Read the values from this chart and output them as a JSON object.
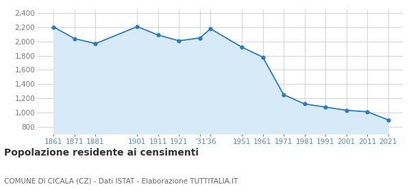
{
  "years": [
    1861,
    1871,
    1881,
    1901,
    1911,
    1921,
    1931,
    1936,
    1951,
    1961,
    1971,
    1981,
    1991,
    2001,
    2011,
    2021
  ],
  "population": [
    2204,
    2040,
    1970,
    2210,
    2090,
    2010,
    2050,
    2180,
    1920,
    1780,
    1250,
    1120,
    1075,
    1030,
    1010,
    895
  ],
  "line_color": "#2a7abf",
  "fill_color": "#d6eaf8",
  "marker_color": "#2a7abf",
  "background_color": "#ffffff",
  "grid_color": "#cccccc",
  "ylim": [
    700,
    2450
  ],
  "yticks": [
    800,
    1000,
    1200,
    1400,
    1600,
    1800,
    2000,
    2200,
    2400
  ],
  "xtick_positions": [
    1861,
    1871,
    1881,
    1901,
    1911,
    1921,
    1931,
    1936,
    1951,
    1961,
    1971,
    1981,
    1991,
    2001,
    2011,
    2021
  ],
  "xtick_labels": [
    "1861",
    "1871",
    "1881",
    "1901",
    "1911",
    "1921",
    "’31",
    "’36",
    "1951",
    "1961",
    "1971",
    "1981",
    "1991",
    "2001",
    "2011",
    "2021"
  ],
  "xlim": [
    1853,
    2028
  ],
  "title": "Popolazione residente ai censimenti",
  "subtitle": "COMUNE DI CICALA (CZ) - Dati ISTAT - Elaborazione TUTTITALIA.IT",
  "title_fontsize": 10,
  "subtitle_fontsize": 7.5,
  "tick_label_color": "#5588bb",
  "ytick_label_color": "#777777"
}
